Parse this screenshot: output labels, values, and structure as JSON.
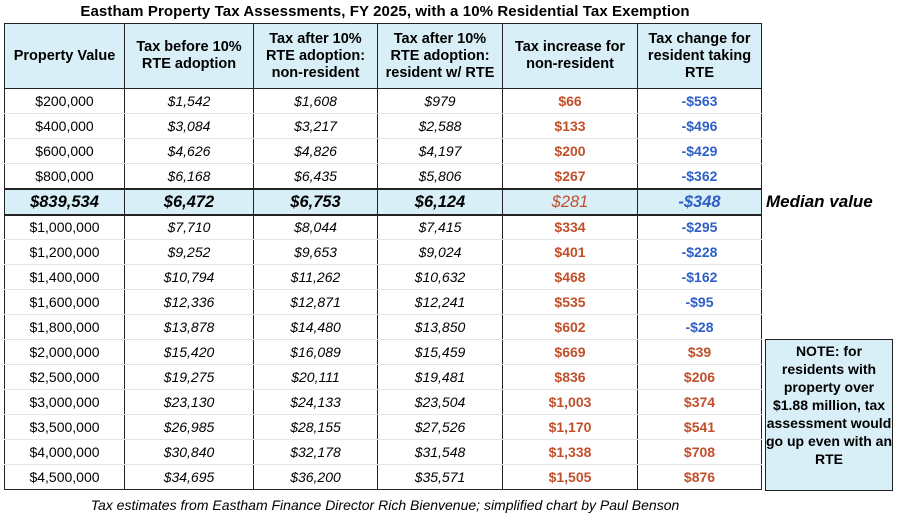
{
  "title": "Eastham Property Tax Assessments, FY 2025, with a 10% Residential Tax Exemption",
  "caption": "Tax estimates from Eastham Finance Director Rich Bienvenue; simplified chart by Paul Benson",
  "median_label": "Median value",
  "note": "NOTE: for residents with property over $1.88 million, tax assessment would go up even with an RTE",
  "colors": {
    "header_bg": "#d8eff8",
    "increase": "#c0502a",
    "decrease": "#2e5fc7"
  },
  "columns": [
    "Property Value",
    "Tax before 10% RTE adoption",
    "Tax after 10% RTE adoption: non-resident",
    "Tax after 10% RTE adoption: resident w/ RTE",
    "Tax increase for non-resident",
    "Tax change for resident taking RTE"
  ],
  "rows": [
    [
      "$200,000",
      "$1,542",
      "$1,608",
      "$979",
      "$66",
      "-$563"
    ],
    [
      "$400,000",
      "$3,084",
      "$3,217",
      "$2,588",
      "$133",
      "-$496"
    ],
    [
      "$600,000",
      "$4,626",
      "$4,826",
      "$4,197",
      "$200",
      "-$429"
    ],
    [
      "$800,000",
      "$6,168",
      "$6,435",
      "$5,806",
      "$267",
      "-$362"
    ],
    [
      "$839,534",
      "$6,472",
      "$6,753",
      "$6,124",
      "$281",
      "-$348"
    ],
    [
      "$1,000,000",
      "$7,710",
      "$8,044",
      "$7,415",
      "$334",
      "-$295"
    ],
    [
      "$1,200,000",
      "$9,252",
      "$9,653",
      "$9,024",
      "$401",
      "-$228"
    ],
    [
      "$1,400,000",
      "$10,794",
      "$11,262",
      "$10,632",
      "$468",
      "-$162"
    ],
    [
      "$1,600,000",
      "$12,336",
      "$12,871",
      "$12,241",
      "$535",
      "-$95"
    ],
    [
      "$1,800,000",
      "$13,878",
      "$14,480",
      "$13,850",
      "$602",
      "-$28"
    ],
    [
      "$2,000,000",
      "$15,420",
      "$16,089",
      "$15,459",
      "$669",
      "$39"
    ],
    [
      "$2,500,000",
      "$19,275",
      "$20,111",
      "$19,481",
      "$836",
      "$206"
    ],
    [
      "$3,000,000",
      "$23,130",
      "$24,133",
      "$23,504",
      "$1,003",
      "$374"
    ],
    [
      "$3,500,000",
      "$26,985",
      "$28,155",
      "$27,526",
      "$1,170",
      "$541"
    ],
    [
      "$4,000,000",
      "$30,840",
      "$32,178",
      "$31,548",
      "$1,338",
      "$708"
    ],
    [
      "$4,500,000",
      "$34,695",
      "$36,200",
      "$35,571",
      "$1,505",
      "$876"
    ]
  ],
  "median_row_index": 4
}
